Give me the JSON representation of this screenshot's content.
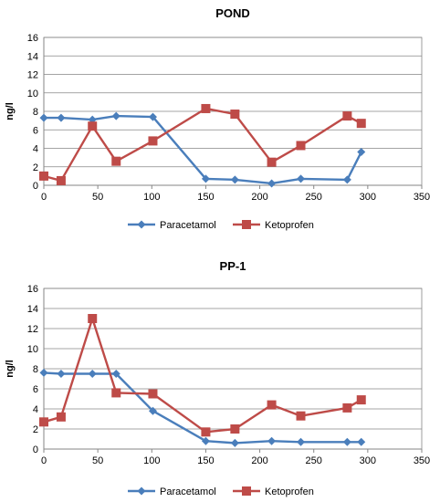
{
  "chart_data": [
    {
      "type": "line",
      "title": "POND",
      "xlabel": "",
      "ylabel": "ng/l",
      "xlim": [
        0,
        350
      ],
      "ylim": [
        0,
        16
      ],
      "xticks": [
        0,
        50,
        100,
        150,
        200,
        250,
        300,
        350
      ],
      "yticks": [
        0,
        2,
        4,
        6,
        8,
        10,
        12,
        14,
        16
      ],
      "grid": true,
      "legend_position": "bottom",
      "series": [
        {
          "name": "Paracetamol",
          "color": "#4a7ebb",
          "marker": "diamond",
          "x": [
            0,
            16,
            45,
            67,
            101,
            150,
            177,
            211,
            238,
            281,
            294
          ],
          "y": [
            7.3,
            7.3,
            7.1,
            7.5,
            7.4,
            0.7,
            0.6,
            0.2,
            0.7,
            0.6,
            3.6
          ]
        },
        {
          "name": "Ketoprofen",
          "color": "#be4b48",
          "marker": "square",
          "x": [
            0,
            16,
            45,
            67,
            101,
            150,
            177,
            211,
            238,
            281,
            294
          ],
          "y": [
            1.0,
            0.5,
            6.4,
            2.6,
            4.8,
            8.3,
            7.7,
            2.5,
            4.3,
            7.5,
            6.7
          ]
        }
      ]
    },
    {
      "type": "line",
      "title": "PP-1",
      "xlabel": "",
      "ylabel": "ng/l",
      "xlim": [
        0,
        350
      ],
      "ylim": [
        0,
        16
      ],
      "xticks": [
        0,
        50,
        100,
        150,
        200,
        250,
        300,
        350
      ],
      "yticks": [
        0,
        2,
        4,
        6,
        8,
        10,
        12,
        14,
        16
      ],
      "grid": true,
      "legend_position": "bottom",
      "series": [
        {
          "name": "Paracetamol",
          "color": "#4a7ebb",
          "marker": "diamond",
          "x": [
            0,
            16,
            45,
            67,
            101,
            150,
            177,
            211,
            238,
            281,
            294
          ],
          "y": [
            7.6,
            7.5,
            7.5,
            7.5,
            3.8,
            0.8,
            0.6,
            0.8,
            0.7,
            0.7,
            0.7
          ]
        },
        {
          "name": "Ketoprofen",
          "color": "#be4b48",
          "marker": "square",
          "x": [
            0,
            16,
            45,
            67,
            101,
            150,
            177,
            211,
            238,
            281,
            294
          ],
          "y": [
            2.7,
            3.2,
            13.0,
            5.6,
            5.5,
            1.7,
            2.0,
            4.4,
            3.3,
            4.1,
            4.9
          ]
        }
      ]
    }
  ]
}
